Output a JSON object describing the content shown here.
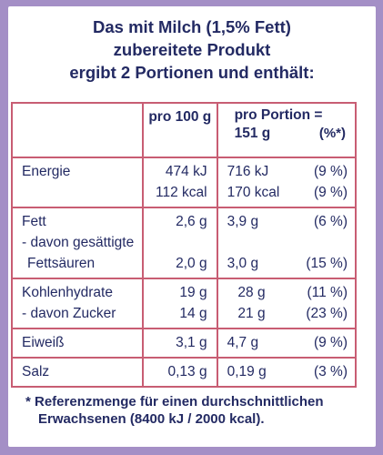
{
  "header": {
    "line1": "Das mit Milch (1,5% Fett)",
    "line2": "zubereitete Produkt",
    "line3": "ergibt 2 Portionen und enthält:"
  },
  "columns": {
    "per100": "pro 100 g",
    "portion_line1": "pro Portion =",
    "portion_size": "151 g",
    "percent": "(%*)"
  },
  "rows": {
    "energy": {
      "label": "Energie",
      "per100_kj": "474 kJ",
      "per100_kcal": "112 kcal",
      "portion_kj": "716 kJ",
      "portion_kcal": "170 kcal",
      "pct_kj": "(9 %)",
      "pct_kcal": "(9 %)"
    },
    "fat": {
      "label": "Fett",
      "per100": "2,6 g",
      "portion": "3,9 g",
      "pct": "(6 %)",
      "sub_label1": " - davon gesättigte",
      "sub_label2": " Fettsäuren",
      "sub_per100": "2,0 g",
      "sub_portion": "3,0 g",
      "sub_pct": "(15 %)"
    },
    "carbs": {
      "label": "Kohlenhydrate",
      "per100": "19 g",
      "portion": "28 g",
      "pct": "(11 %)",
      "sub_label": " - davon Zucker",
      "sub_per100": "14 g",
      "sub_portion": "21 g",
      "sub_pct": "(23 %)"
    },
    "protein": {
      "label": "Eiweiß",
      "per100": "3,1 g",
      "portion": "4,7 g",
      "pct": "(9 %)"
    },
    "salt": {
      "label": "Salz",
      "per100": "0,13 g",
      "portion": "0,19 g",
      "pct": "(3 %)"
    }
  },
  "footnote": {
    "line1": "* Referenzmenge für einen durchschnittlichen",
    "line2": "Erwachsenen (8400 kJ / 2000 kcal)."
  },
  "colors": {
    "border": "#c85d73",
    "text": "#232a63",
    "background": "#a48fc6"
  }
}
